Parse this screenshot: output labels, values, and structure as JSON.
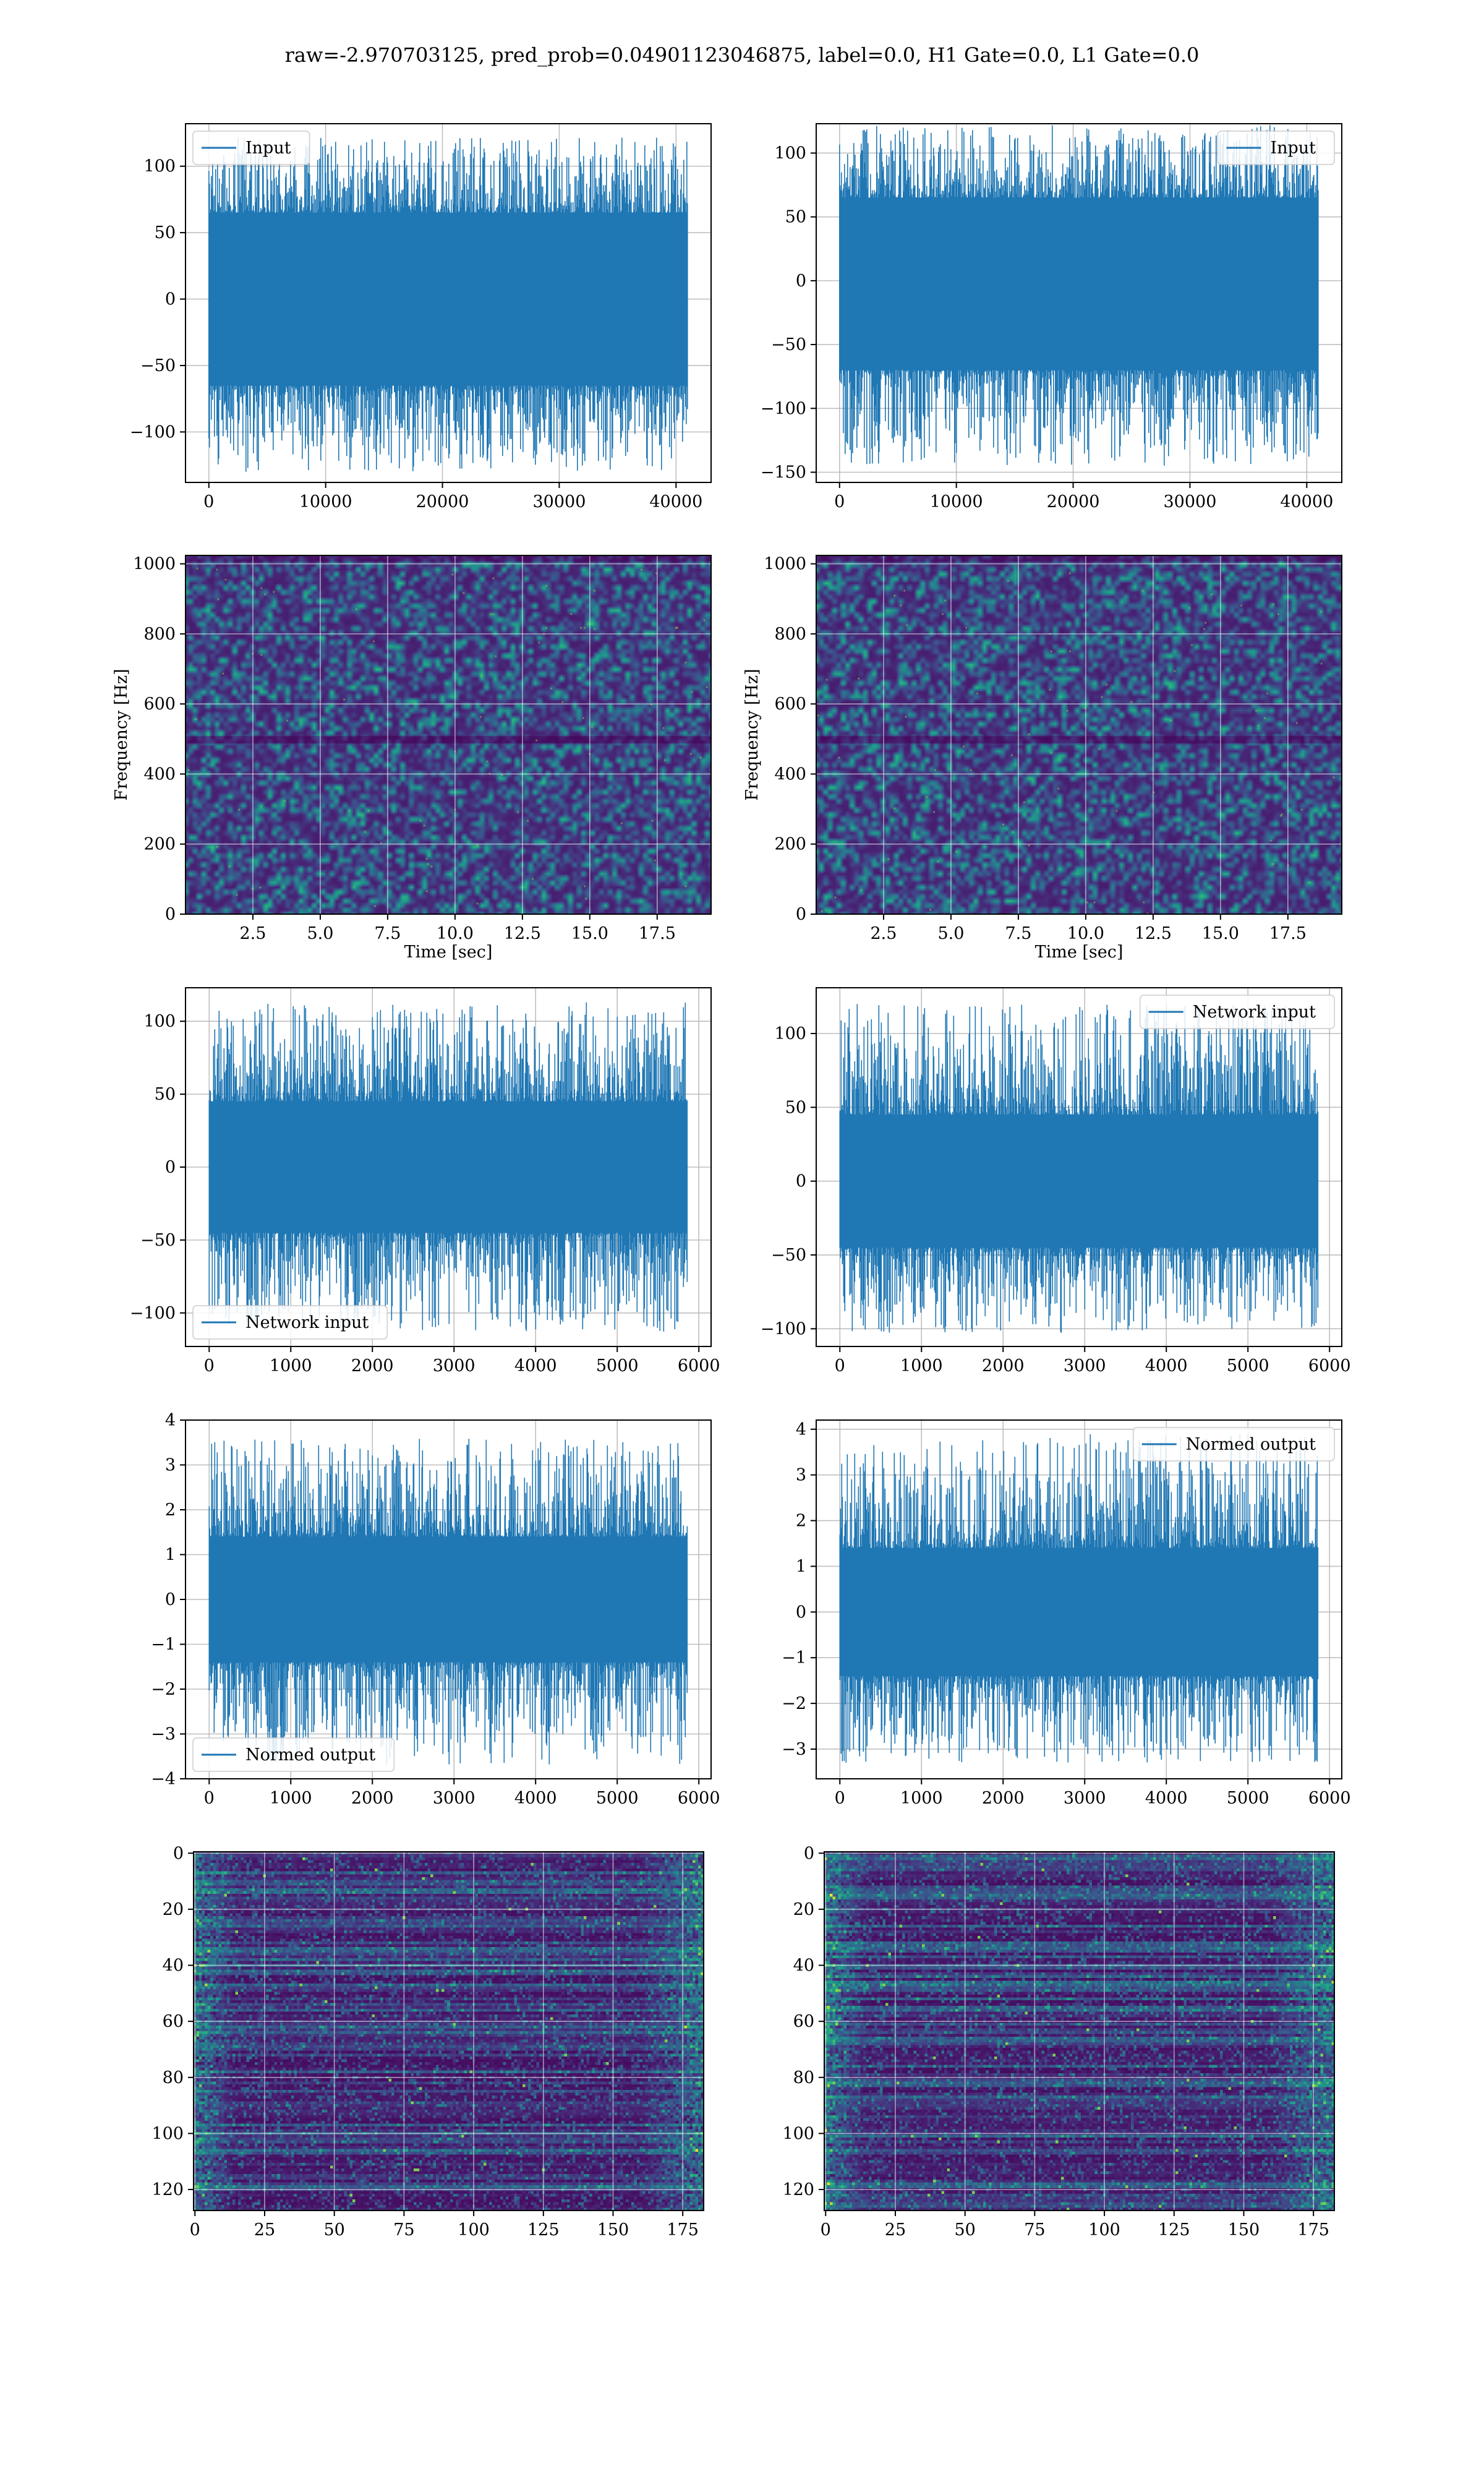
{
  "figure": {
    "title": "raw=-2.970703125, pred_prob=0.04901123046875, label=0.0, H1 Gate=0.0, L1 Gate=0.0"
  },
  "colors": {
    "line": "#1f77b4",
    "viridis": [
      "#440154",
      "#482475",
      "#414487",
      "#355f8d",
      "#2a788e",
      "#21918c",
      "#22a884",
      "#44bf70",
      "#7ad151",
      "#bddf26",
      "#fde725"
    ],
    "background": "#ffffff"
  },
  "chart_data": [
    {
      "id": "h1-input",
      "type": "line",
      "row": 0,
      "col": 0,
      "title": "",
      "xlabel": "",
      "ylabel": "",
      "series": [
        {
          "name": "Input"
        }
      ],
      "legend": "top-left",
      "x": [
        0,
        41000
      ],
      "xlim": [
        -2000,
        43000
      ],
      "ylim": [
        -138,
        132
      ],
      "xticks": [
        0,
        10000,
        20000,
        30000,
        40000
      ],
      "xtick_labels": [
        "0",
        "10000",
        "20000",
        "30000",
        "40000"
      ],
      "yticks": [
        -100,
        -50,
        0,
        50,
        100
      ],
      "ytick_labels": [
        "−100",
        "−50",
        "0",
        "50",
        "100"
      ],
      "core_range": [
        -65,
        65
      ],
      "peak_range": [
        -130,
        122
      ],
      "grid": true
    },
    {
      "id": "l1-input",
      "type": "line",
      "row": 0,
      "col": 1,
      "title": "",
      "xlabel": "",
      "ylabel": "",
      "series": [
        {
          "name": "Input"
        }
      ],
      "legend": "top-right",
      "x": [
        0,
        41000
      ],
      "xlim": [
        -2000,
        43000
      ],
      "ylim": [
        -158,
        123
      ],
      "xticks": [
        0,
        10000,
        20000,
        30000,
        40000
      ],
      "xtick_labels": [
        "0",
        "10000",
        "20000",
        "30000",
        "40000"
      ],
      "yticks": [
        -150,
        -100,
        -50,
        0,
        50,
        100
      ],
      "ytick_labels": [
        "−150",
        "−100",
        "−50",
        "0",
        "50",
        "100"
      ],
      "core_range": [
        -70,
        65
      ],
      "peak_range": [
        -145,
        122
      ],
      "grid": true
    },
    {
      "id": "h1-spectrogram",
      "type": "heatmap",
      "row": 1,
      "col": 0,
      "title": "",
      "xlabel": "Time [sec]",
      "ylabel": "Frequency [Hz]",
      "xlim": [
        0,
        19.5
      ],
      "ylim": [
        0,
        1024
      ],
      "xticks": [
        2.5,
        5.0,
        7.5,
        10.0,
        12.5,
        15.0,
        17.5
      ],
      "xtick_labels": [
        "2.5",
        "5.0",
        "7.5",
        "10.0",
        "12.5",
        "15.0",
        "17.5"
      ],
      "yticks": [
        0,
        200,
        400,
        600,
        800,
        1000
      ],
      "ytick_labels": [
        "0",
        "200",
        "400",
        "600",
        "800",
        "1000"
      ],
      "dark_band_hz": [
        500,
        1000
      ],
      "colormap": "viridis",
      "grid": true
    },
    {
      "id": "l1-spectrogram",
      "type": "heatmap",
      "row": 1,
      "col": 1,
      "title": "",
      "xlabel": "Time [sec]",
      "ylabel": "Frequency [Hz]",
      "xlim": [
        0,
        19.5
      ],
      "ylim": [
        0,
        1024
      ],
      "xticks": [
        2.5,
        5.0,
        7.5,
        10.0,
        12.5,
        15.0,
        17.5
      ],
      "xtick_labels": [
        "2.5",
        "5.0",
        "7.5",
        "10.0",
        "12.5",
        "15.0",
        "17.5"
      ],
      "yticks": [
        0,
        200,
        400,
        600,
        800,
        1000
      ],
      "ytick_labels": [
        "0",
        "200",
        "400",
        "600",
        "800",
        "1000"
      ],
      "dark_band_hz": [
        500,
        1000
      ],
      "colormap": "viridis",
      "grid": true
    },
    {
      "id": "h1-network-input",
      "type": "line",
      "row": 2,
      "col": 0,
      "title": "",
      "xlabel": "",
      "ylabel": "",
      "series": [
        {
          "name": "Network input"
        }
      ],
      "legend": "bottom-left",
      "x": [
        0,
        5860
      ],
      "xlim": [
        -290,
        6150
      ],
      "ylim": [
        -123,
        123
      ],
      "xticks": [
        0,
        1000,
        2000,
        3000,
        4000,
        5000,
        6000
      ],
      "xtick_labels": [
        "0",
        "1000",
        "2000",
        "3000",
        "4000",
        "5000",
        "6000"
      ],
      "yticks": [
        -100,
        -50,
        0,
        50,
        100
      ],
      "ytick_labels": [
        "−100",
        "−50",
        "0",
        "50",
        "100"
      ],
      "core_range": [
        -45,
        45
      ],
      "peak_range": [
        -113,
        113
      ],
      "grid": true
    },
    {
      "id": "l1-network-input",
      "type": "line",
      "row": 2,
      "col": 1,
      "title": "",
      "xlabel": "",
      "ylabel": "",
      "series": [
        {
          "name": "Network input"
        }
      ],
      "legend": "top-right",
      "x": [
        0,
        5860
      ],
      "xlim": [
        -290,
        6150
      ],
      "ylim": [
        -112,
        131
      ],
      "xticks": [
        0,
        1000,
        2000,
        3000,
        4000,
        5000,
        6000
      ],
      "xtick_labels": [
        "0",
        "1000",
        "2000",
        "3000",
        "4000",
        "5000",
        "6000"
      ],
      "yticks": [
        -100,
        -50,
        0,
        50,
        100
      ],
      "ytick_labels": [
        "−100",
        "−50",
        "0",
        "50",
        "100"
      ],
      "core_range": [
        -45,
        45
      ],
      "peak_range": [
        -103,
        120
      ],
      "grid": true
    },
    {
      "id": "h1-normed-output",
      "type": "line",
      "row": 3,
      "col": 0,
      "title": "",
      "xlabel": "",
      "ylabel": "",
      "series": [
        {
          "name": "Normed output"
        }
      ],
      "legend": "bottom-left",
      "x": [
        0,
        5860
      ],
      "xlim": [
        -290,
        6150
      ],
      "ylim": [
        -4.0,
        4.0
      ],
      "xticks": [
        0,
        1000,
        2000,
        3000,
        4000,
        5000,
        6000
      ],
      "xtick_labels": [
        "0",
        "1000",
        "2000",
        "3000",
        "4000",
        "5000",
        "6000"
      ],
      "yticks": [
        -4,
        -3,
        -2,
        -1,
        0,
        1,
        2,
        3,
        4
      ],
      "ytick_labels": [
        "−4",
        "−3",
        "−2",
        "−1",
        "0",
        "1",
        "2",
        "3",
        "4"
      ],
      "core_range": [
        -1.4,
        1.4
      ],
      "peak_range": [
        -3.7,
        3.6
      ],
      "grid": true
    },
    {
      "id": "l1-normed-output",
      "type": "line",
      "row": 3,
      "col": 1,
      "title": "",
      "xlabel": "",
      "ylabel": "",
      "series": [
        {
          "name": "Normed output"
        }
      ],
      "legend": "top-right",
      "x": [
        0,
        5860
      ],
      "xlim": [
        -290,
        6150
      ],
      "ylim": [
        -3.65,
        4.2
      ],
      "xticks": [
        0,
        1000,
        2000,
        3000,
        4000,
        5000,
        6000
      ],
      "xtick_labels": [
        "0",
        "1000",
        "2000",
        "3000",
        "4000",
        "5000",
        "6000"
      ],
      "yticks": [
        -3,
        -2,
        -1,
        0,
        1,
        2,
        3,
        4
      ],
      "ytick_labels": [
        "−3",
        "−2",
        "−1",
        "0",
        "1",
        "2",
        "3",
        "4"
      ],
      "core_range": [
        -1.4,
        1.4
      ],
      "peak_range": [
        -3.3,
        3.9
      ],
      "grid": true
    },
    {
      "id": "h1-feature-map",
      "type": "heatmap",
      "row": 4,
      "col": 0,
      "title": "",
      "xlabel": "",
      "ylabel": "",
      "xlim": [
        -0.5,
        182.5
      ],
      "ylim": [
        -0.5,
        127.5
      ],
      "xticks": [
        0,
        25,
        50,
        75,
        100,
        125,
        150,
        175
      ],
      "xtick_labels": [
        "0",
        "25",
        "50",
        "75",
        "100",
        "125",
        "150",
        "175"
      ],
      "yticks": [
        0,
        20,
        40,
        60,
        80,
        100,
        120
      ],
      "ytick_labels": [
        "0",
        "20",
        "40",
        "60",
        "80",
        "100",
        "120"
      ],
      "colormap": "viridis",
      "grid": true
    },
    {
      "id": "l1-feature-map",
      "type": "heatmap",
      "row": 4,
      "col": 1,
      "title": "",
      "xlabel": "",
      "ylabel": "",
      "xlim": [
        -0.5,
        182.5
      ],
      "ylim": [
        -0.5,
        127.5
      ],
      "xticks": [
        0,
        25,
        50,
        75,
        100,
        125,
        150,
        175
      ],
      "xtick_labels": [
        "0",
        "25",
        "50",
        "75",
        "100",
        "125",
        "150",
        "175"
      ],
      "yticks": [
        0,
        20,
        40,
        60,
        80,
        100,
        120
      ],
      "ytick_labels": [
        "0",
        "20",
        "40",
        "60",
        "80",
        "100",
        "120"
      ],
      "colormap": "viridis",
      "grid": true
    }
  ]
}
